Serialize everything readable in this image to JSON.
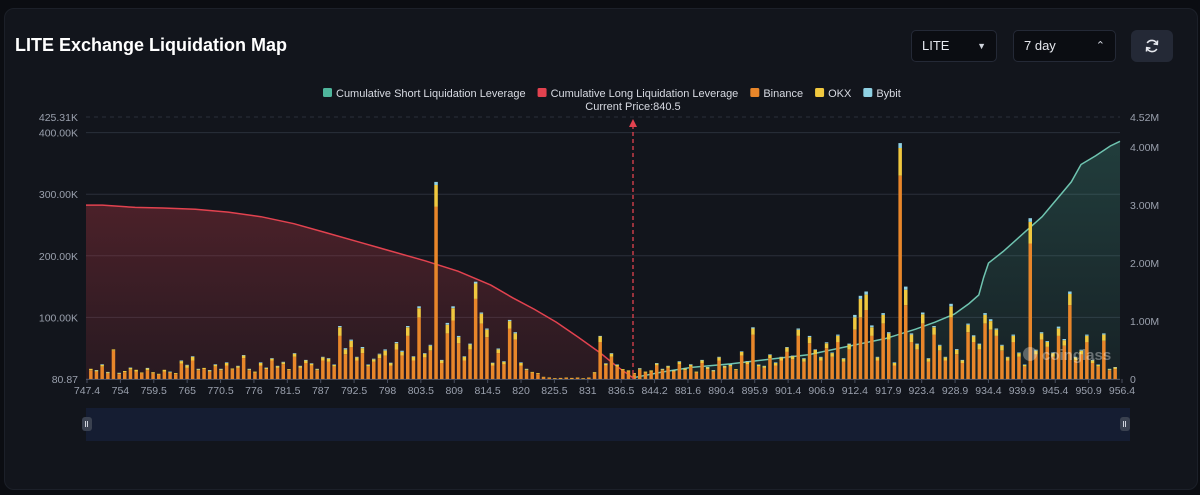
{
  "header": {
    "title": "LITE Exchange Liquidation Map",
    "coin_select": "LITE",
    "range_select": "7 day",
    "refresh_icon": "refresh-icon",
    "dropdown_icon": "caret-down-icon",
    "stepper_icon": "chevron-updown-icon"
  },
  "watermark": "coinglass",
  "chart_data": {
    "type": "bar",
    "current_price_label": "Current Price:840.5",
    "current_price": 840.5,
    "legend": [
      {
        "name": "Cumulative Short Liquidation Leverage",
        "color": "#4fb59c"
      },
      {
        "name": "Cumulative Long Liquidation Leverage",
        "color": "#e2424f"
      },
      {
        "name": "Binance",
        "color": "#e8862a"
      },
      {
        "name": "OKX",
        "color": "#f0c83f"
      },
      {
        "name": "Bybit",
        "color": "#8fd1e3"
      }
    ],
    "x_tick_labels": [
      "747.4",
      "754",
      "759.5",
      "765",
      "770.5",
      "776",
      "781.5",
      "787",
      "792.5",
      "798",
      "803.5",
      "809",
      "814.5",
      "820",
      "825.5",
      "831",
      "836.5",
      "844.2",
      "881.6",
      "890.4",
      "895.9",
      "901.4",
      "906.9",
      "912.4",
      "917.9",
      "923.4",
      "928.9",
      "934.4",
      "939.9",
      "945.4",
      "950.9",
      "956.4"
    ],
    "y_left_ticks": [
      "425.31K",
      "400.00K",
      "300.00K",
      "200.00K",
      "100.00K",
      "80.87"
    ],
    "y_right_ticks": [
      "4.52M",
      "4.00M",
      "3.00M",
      "2.00M",
      "1.00M",
      "0"
    ],
    "y_left_values": [
      425310,
      400000,
      300000,
      200000,
      100000,
      80.87
    ],
    "y_right_values": [
      4520000,
      4000000,
      3000000,
      2000000,
      1000000,
      0
    ],
    "y_left_range": [
      0,
      425310
    ],
    "y_right_range": [
      0,
      4520000
    ],
    "cumulative_long": {
      "name": "Cumulative Long Liquidation Leverage",
      "x_from": "747.4",
      "x_to": "840.5",
      "points_frac": [
        [
          0,
          3.0
        ],
        [
          0.03,
          3.0
        ],
        [
          0.06,
          2.98
        ],
        [
          0.09,
          2.96
        ],
        [
          0.14,
          2.95
        ],
        [
          0.2,
          2.93
        ],
        [
          0.26,
          2.88
        ],
        [
          0.32,
          2.8
        ],
        [
          0.38,
          2.68
        ],
        [
          0.44,
          2.52
        ],
        [
          0.5,
          2.36
        ],
        [
          0.56,
          2.2
        ],
        [
          0.62,
          2.04
        ],
        [
          0.68,
          1.86
        ],
        [
          0.74,
          1.62
        ],
        [
          0.78,
          1.4
        ],
        [
          0.82,
          1.2
        ],
        [
          0.86,
          0.98
        ],
        [
          0.9,
          0.72
        ],
        [
          0.94,
          0.45
        ],
        [
          0.97,
          0.22
        ],
        [
          1,
          0.02
        ]
      ]
    },
    "cumulative_short": {
      "name": "Cumulative Short Liquidation Leverage",
      "x_from": "840.5",
      "x_to": "956.4",
      "points_frac": [
        [
          0,
          0.02
        ],
        [
          0.06,
          0.12
        ],
        [
          0.12,
          0.2
        ],
        [
          0.2,
          0.26
        ],
        [
          0.28,
          0.34
        ],
        [
          0.36,
          0.42
        ],
        [
          0.44,
          0.56
        ],
        [
          0.52,
          0.7
        ],
        [
          0.58,
          0.86
        ],
        [
          0.62,
          0.98
        ],
        [
          0.66,
          1.12
        ],
        [
          0.69,
          1.3
        ],
        [
          0.71,
          1.45
        ],
        [
          0.72,
          1.75
        ],
        [
          0.73,
          2.0
        ],
        [
          0.76,
          2.2
        ],
        [
          0.8,
          2.5
        ],
        [
          0.84,
          2.8
        ],
        [
          0.86,
          3.0
        ],
        [
          0.88,
          3.2
        ],
        [
          0.9,
          3.4
        ],
        [
          0.92,
          3.7
        ],
        [
          0.95,
          3.85
        ],
        [
          0.98,
          4.02
        ],
        [
          1,
          4.1
        ]
      ]
    },
    "bars_note": "per-price liquidation volume, stacked Binance / OKX / Bybit",
    "bars": [
      [
        14000,
        2500,
        0
      ],
      [
        12000,
        2000,
        500
      ],
      [
        20000,
        3000,
        1000
      ],
      [
        9000,
        2000,
        500
      ],
      [
        46000,
        2000,
        0
      ],
      [
        8000,
        1500,
        500
      ],
      [
        11000,
        2000,
        0
      ],
      [
        15000,
        3000,
        500
      ],
      [
        12000,
        3000,
        0
      ],
      [
        9000,
        1500,
        0
      ],
      [
        14000,
        3000,
        1000
      ],
      [
        9000,
        2000,
        0
      ],
      [
        7000,
        1500,
        0
      ],
      [
        12000,
        3000,
        0
      ],
      [
        10000,
        1500,
        500
      ],
      [
        8000,
        1500,
        0
      ],
      [
        25000,
        4000,
        1000
      ],
      [
        18000,
        4000,
        1000
      ],
      [
        30000,
        6000,
        1000
      ],
      [
        14000,
        2000,
        500
      ],
      [
        16000,
        2000,
        0
      ],
      [
        12000,
        2000,
        500
      ],
      [
        20000,
        3000,
        1000
      ],
      [
        14000,
        2000,
        500
      ],
      [
        22000,
        4000,
        1000
      ],
      [
        15000,
        2000,
        0
      ],
      [
        18000,
        3000,
        500
      ],
      [
        34000,
        4000,
        1000
      ],
      [
        14000,
        2000,
        500
      ],
      [
        10000,
        2000,
        0
      ],
      [
        22000,
        4000,
        1000
      ],
      [
        16000,
        2000,
        500
      ],
      [
        30000,
        3000,
        1000
      ],
      [
        18000,
        3000,
        500
      ],
      [
        24000,
        3000,
        1000
      ],
      [
        14000,
        2000,
        0
      ],
      [
        36000,
        5000,
        1000
      ],
      [
        18000,
        3000,
        500
      ],
      [
        26000,
        4000,
        1000
      ],
      [
        22000,
        3000,
        500
      ],
      [
        14000,
        2000,
        500
      ],
      [
        30000,
        5000,
        1000
      ],
      [
        28000,
        5000,
        1000
      ],
      [
        20000,
        3000,
        500
      ],
      [
        70000,
        14000,
        2000
      ],
      [
        40000,
        8000,
        2000
      ],
      [
        52000,
        10000,
        2000
      ],
      [
        30000,
        5000,
        1000
      ],
      [
        42000,
        8000,
        2000
      ],
      [
        20000,
        3000,
        500
      ],
      [
        28000,
        4000,
        1000
      ],
      [
        34000,
        6000,
        1000
      ],
      [
        38000,
        8000,
        2000
      ],
      [
        22000,
        4000,
        500
      ],
      [
        48000,
        10000,
        2000
      ],
      [
        38000,
        6000,
        2000
      ],
      [
        70000,
        14000,
        2000
      ],
      [
        30000,
        6000,
        1000
      ],
      [
        100000,
        15000,
        3000
      ],
      [
        35000,
        6000,
        1000
      ],
      [
        46000,
        8000,
        1500
      ],
      [
        280000,
        35000,
        5000
      ],
      [
        26000,
        4000,
        1000
      ],
      [
        74000,
        14000,
        3000
      ],
      [
        95000,
        20000,
        3000
      ],
      [
        58000,
        10000,
        2000
      ],
      [
        30000,
        6000,
        1000
      ],
      [
        48000,
        8000,
        1500
      ],
      [
        130000,
        25000,
        3000
      ],
      [
        90000,
        16000,
        2000
      ],
      [
        68000,
        12000,
        2000
      ],
      [
        22000,
        4000,
        500
      ],
      [
        42000,
        6000,
        1500
      ],
      [
        24000,
        4000,
        1000
      ],
      [
        82000,
        12000,
        2000
      ],
      [
        64000,
        10000,
        2000
      ],
      [
        22000,
        4000,
        1000
      ],
      [
        14000,
        2000,
        500
      ],
      [
        10000,
        1500,
        0
      ],
      [
        8000,
        1500,
        0
      ],
      [
        3000,
        500,
        0
      ],
      [
        2000,
        500,
        0
      ],
      [
        1000,
        300,
        0
      ],
      [
        1500,
        300,
        0
      ],
      [
        2000,
        300,
        0
      ],
      [
        1500,
        300,
        0
      ],
      [
        2000,
        300,
        0
      ],
      [
        1000,
        200,
        0
      ],
      [
        2000,
        300,
        0
      ],
      [
        9000,
        2000,
        0
      ],
      [
        60000,
        9000,
        1000
      ],
      [
        22000,
        3000,
        500
      ],
      [
        36000,
        5000,
        1000
      ],
      [
        20000,
        3000,
        500
      ],
      [
        14000,
        2000,
        0
      ],
      [
        12000,
        2000,
        0
      ],
      [
        8000,
        1500,
        0
      ],
      [
        15000,
        2000,
        500
      ],
      [
        10000,
        2000,
        0
      ],
      [
        12000,
        2000,
        0
      ],
      [
        22000,
        3000,
        1000
      ],
      [
        14000,
        2000,
        500
      ],
      [
        18000,
        3000,
        500
      ],
      [
        12000,
        2000,
        500
      ],
      [
        24000,
        4000,
        1000
      ],
      [
        14000,
        3000,
        500
      ],
      [
        20000,
        3000,
        1000
      ],
      [
        10000,
        2000,
        0
      ],
      [
        26000,
        4000,
        1000
      ],
      [
        16000,
        3000,
        500
      ],
      [
        12000,
        2000,
        500
      ],
      [
        30000,
        5000,
        1000
      ],
      [
        18000,
        3000,
        500
      ],
      [
        20000,
        3000,
        500
      ],
      [
        14000,
        2000,
        0
      ],
      [
        38000,
        6000,
        1000
      ],
      [
        24000,
        4000,
        1000
      ],
      [
        72000,
        10000,
        2000
      ],
      [
        20000,
        3000,
        500
      ],
      [
        18000,
        3000,
        500
      ],
      [
        34000,
        5000,
        1000
      ],
      [
        22000,
        4000,
        1000
      ],
      [
        30000,
        5000,
        1000
      ],
      [
        44000,
        7000,
        1000
      ],
      [
        32000,
        5000,
        1000
      ],
      [
        70000,
        10000,
        2000
      ],
      [
        28000,
        5000,
        1000
      ],
      [
        58000,
        10000,
        2000
      ],
      [
        40000,
        7000,
        1000
      ],
      [
        30000,
        5000,
        1000
      ],
      [
        50000,
        8000,
        1500
      ],
      [
        36000,
        6000,
        1000
      ],
      [
        60000,
        10000,
        2000
      ],
      [
        28000,
        5000,
        1000
      ],
      [
        48000,
        8000,
        1500
      ],
      [
        80000,
        20000,
        4000
      ],
      [
        100000,
        30000,
        5000
      ],
      [
        112000,
        25000,
        5000
      ],
      [
        70000,
        14000,
        3000
      ],
      [
        30000,
        5000,
        1000
      ],
      [
        90000,
        14000,
        3000
      ],
      [
        64000,
        10000,
        2000
      ],
      [
        22000,
        4000,
        1000
      ],
      [
        330000,
        45000,
        8000
      ],
      [
        120000,
        25000,
        5000
      ],
      [
        60000,
        12000,
        2000
      ],
      [
        48000,
        8000,
        1500
      ],
      [
        90000,
        15000,
        3000
      ],
      [
        28000,
        5000,
        1000
      ],
      [
        72000,
        12000,
        2000
      ],
      [
        46000,
        8000,
        1500
      ],
      [
        30000,
        5000,
        1000
      ],
      [
        100000,
        18000,
        4000
      ],
      [
        40000,
        7000,
        1500
      ],
      [
        26000,
        4000,
        1000
      ],
      [
        76000,
        12000,
        2000
      ],
      [
        60000,
        9000,
        2000
      ],
      [
        48000,
        8000,
        1500
      ],
      [
        90000,
        14000,
        3000
      ],
      [
        80000,
        14000,
        3000
      ],
      [
        70000,
        10000,
        2000
      ],
      [
        46000,
        8000,
        1500
      ],
      [
        30000,
        5000,
        1000
      ],
      [
        60000,
        10000,
        2000
      ],
      [
        36000,
        6000,
        1000
      ],
      [
        20000,
        3000,
        500
      ],
      [
        220000,
        35000,
        6000
      ],
      [
        40000,
        6000,
        1500
      ],
      [
        64000,
        10000,
        2000
      ],
      [
        52000,
        8000,
        1500
      ],
      [
        36000,
        6000,
        1000
      ],
      [
        70000,
        12000,
        3000
      ],
      [
        54000,
        9000,
        2000
      ],
      [
        120000,
        18000,
        4000
      ],
      [
        30000,
        5000,
        1000
      ],
      [
        40000,
        6000,
        1500
      ],
      [
        60000,
        10000,
        2000
      ],
      [
        26000,
        4000,
        1000
      ],
      [
        20000,
        3000,
        500
      ],
      [
        62000,
        10000,
        2000
      ],
      [
        14000,
        2000,
        500
      ],
      [
        16000,
        3000,
        500
      ]
    ]
  }
}
